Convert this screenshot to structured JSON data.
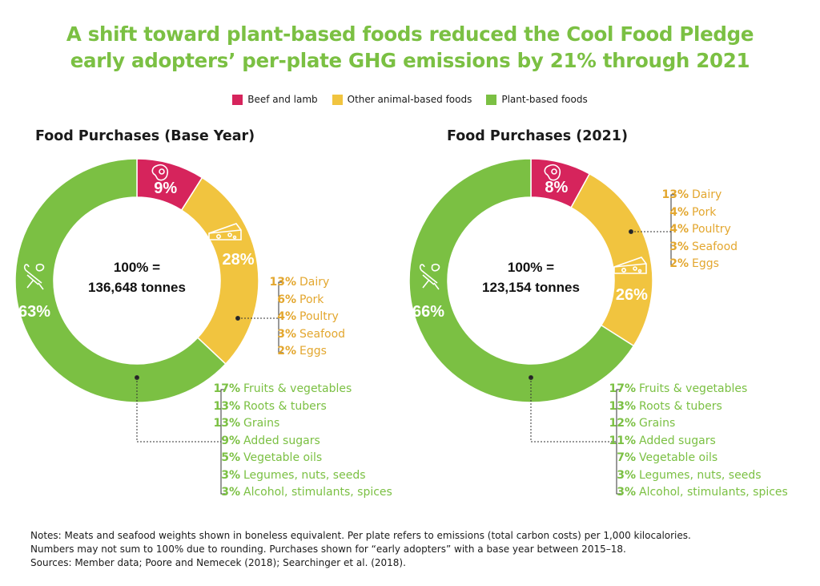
{
  "title": {
    "line1": "A shift toward plant-based foods reduced the Cool Food Pledge",
    "line2": "early adopters’ per-plate GHG emissions by 21% through 2021"
  },
  "legend": [
    {
      "label": "Beef and lamb",
      "color": "#d6245c"
    },
    {
      "label": "Other animal-based foods",
      "color": "#f1c43f"
    },
    {
      "label": "Plant-based foods",
      "color": "#7bc043"
    }
  ],
  "chart_data": [
    {
      "type": "pie",
      "title": "Food Purchases (Base Year)",
      "center_label_line1": "100% =",
      "center_label_line2": "136,648 tonnes",
      "categories": [
        "Beef and lamb",
        "Other animal-based foods",
        "Plant-based foods"
      ],
      "values": [
        9,
        28,
        63
      ],
      "labels": [
        "9%",
        "28%",
        "63%"
      ],
      "colors": [
        "#d6245c",
        "#f1c43f",
        "#7bc043"
      ],
      "animal_breakdown": [
        {
          "pct": "13%",
          "name": "Dairy"
        },
        {
          "pct": "6%",
          "name": "Pork"
        },
        {
          "pct": "4%",
          "name": "Poultry"
        },
        {
          "pct": "3%",
          "name": "Seafood"
        },
        {
          "pct": "2%",
          "name": "Eggs"
        }
      ],
      "plant_breakdown": [
        {
          "pct": "17%",
          "name": "Fruits & vegetables"
        },
        {
          "pct": "13%",
          "name": "Roots & tubers"
        },
        {
          "pct": "13%",
          "name": "Grains"
        },
        {
          "pct": "9%",
          "name": "Added sugars"
        },
        {
          "pct": "5%",
          "name": "Vegetable oils"
        },
        {
          "pct": "3%",
          "name": "Legumes, nuts, seeds"
        },
        {
          "pct": "3%",
          "name": "Alcohol, stimulants, spices"
        }
      ]
    },
    {
      "type": "pie",
      "title": "Food Purchases (2021)",
      "center_label_line1": "100% =",
      "center_label_line2": "123,154 tonnes",
      "categories": [
        "Beef and lamb",
        "Other animal-based foods",
        "Plant-based foods"
      ],
      "values": [
        8,
        26,
        66
      ],
      "labels": [
        "8%",
        "26%",
        "66%"
      ],
      "colors": [
        "#d6245c",
        "#f1c43f",
        "#7bc043"
      ],
      "animal_breakdown": [
        {
          "pct": "13%",
          "name": "Dairy"
        },
        {
          "pct": "4%",
          "name": "Pork"
        },
        {
          "pct": "4%",
          "name": "Poultry"
        },
        {
          "pct": "3%",
          "name": "Seafood"
        },
        {
          "pct": "2%",
          "name": "Eggs"
        }
      ],
      "plant_breakdown": [
        {
          "pct": "17%",
          "name": "Fruits & vegetables"
        },
        {
          "pct": "13%",
          "name": "Roots & tubers"
        },
        {
          "pct": "12%",
          "name": "Grains"
        },
        {
          "pct": "11%",
          "name": "Added sugars"
        },
        {
          "pct": "7%",
          "name": "Vegetable oils"
        },
        {
          "pct": "3%",
          "name": "Legumes, nuts, seeds"
        },
        {
          "pct": "3%",
          "name": "Alcohol, stimulants, spices"
        }
      ]
    }
  ],
  "notes": [
    "Notes: Meats and seafood weights shown in boneless equivalent. Per plate refers to emissions (total carbon costs) per 1,000 kilocalories.",
    "Numbers may not sum to 100% due to rounding. Purchases shown for “early adopters” with a base year between 2015–18.",
    "Sources: Member data; Poore and Nemecek (2018); Searchinger et al. (2018)."
  ]
}
